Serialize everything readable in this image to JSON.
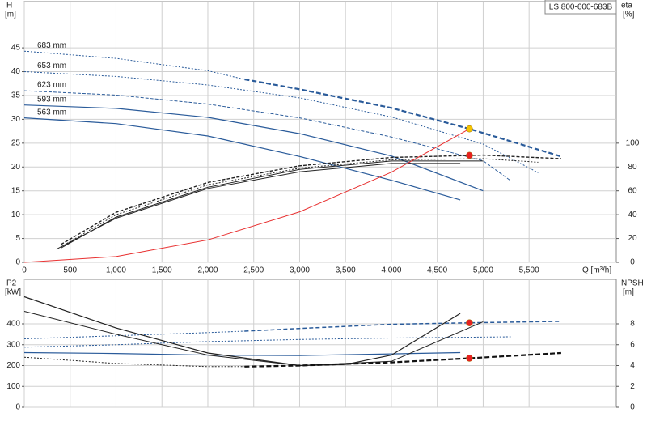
{
  "chart_data": [
    {
      "type": "line",
      "title": "LS 800-600-683B",
      "ylabel": "H",
      "yunit": "[m]",
      "y2label": "eta",
      "y2unit": "[%]",
      "xlabel": "Q [m³/h]",
      "xlim": [
        0,
        6450
      ],
      "xticks": [
        0,
        500,
        {
          "value": 1000,
          "label": "1,000"
        },
        {
          "value": 1500,
          "label": "1,500"
        },
        {
          "value": 2000,
          "label": "2,000"
        },
        {
          "value": 2500,
          "label": "2,500"
        },
        {
          "value": 3000,
          "label": "3,000"
        },
        {
          "value": 3500,
          "label": "3,500"
        },
        {
          "value": 4000,
          "label": "4,000"
        },
        {
          "value": 4500,
          "label": "4,500"
        },
        {
          "value": 5000,
          "label": "5,000"
        },
        {
          "value": 5500,
          "label": "5,500"
        }
      ],
      "show_xtick_labels": true,
      "ylim": [
        0,
        54.7
      ],
      "yticks": [
        0,
        5,
        10,
        15,
        20,
        25,
        30,
        35,
        40,
        45
      ],
      "y2lim": [
        0,
        218.8
      ],
      "y2ticks": [
        0,
        20,
        40,
        60,
        80,
        100
      ],
      "grid": true,
      "series": [
        {
          "name": "683 mm",
          "color": "#2a5b9a",
          "dash": "2,2",
          "width": 1,
          "x": [
            0,
            1000,
            2000,
            2400
          ],
          "values": [
            44.3,
            42.8,
            40.2,
            38.4
          ]
        },
        {
          "color": "#2a5b9a",
          "dash": "6,3",
          "width": 2.2,
          "x": [
            2400,
            3000,
            4000,
            4850,
            5850
          ],
          "values": [
            38.4,
            36.3,
            32.4,
            28.0,
            22.2
          ]
        },
        {
          "name": "653 mm",
          "color": "#2a5b9a",
          "dash": "2,2",
          "width": 1,
          "x": [
            0,
            1000,
            2000,
            3000,
            4000,
            5000,
            5600
          ],
          "values": [
            40.0,
            39.0,
            37.2,
            34.5,
            30.5,
            24.8,
            18.8
          ]
        },
        {
          "name": "623 mm",
          "color": "#2a5b9a",
          "dash": "4,2",
          "width": 1,
          "x": [
            0,
            1000,
            2000,
            3000,
            4000,
            5000,
            5300
          ],
          "values": [
            36.0,
            35.1,
            33.2,
            30.3,
            26.3,
            21.3,
            17.1
          ]
        },
        {
          "name": "593 mm",
          "color": "#2a5b9a",
          "width": 1.2,
          "x": [
            0,
            1000,
            2000,
            3000,
            4000,
            5000
          ],
          "values": [
            33.0,
            32.3,
            30.4,
            27.0,
            22.3,
            15.0
          ]
        },
        {
          "name": "563 mm",
          "color": "#2a5b9a",
          "width": 1.2,
          "x": [
            0,
            1000,
            2000,
            3000,
            4000,
            4750
          ],
          "values": [
            30.3,
            29.1,
            26.5,
            22.2,
            17.2,
            13.1
          ]
        },
        {
          "color": "#222222",
          "dash": "4,2",
          "width": 1.4,
          "axis": "y2",
          "x": [
            400,
            1000,
            2000,
            3000,
            4000,
            5000,
            5850
          ],
          "values": [
            15,
            42,
            67,
            81,
            88,
            90,
            87
          ]
        },
        {
          "color": "#222222",
          "dash": "2,2",
          "width": 1,
          "axis": "y2",
          "x": [
            400,
            1000,
            2000,
            3000,
            4000,
            5000,
            5600
          ],
          "values": [
            13,
            40,
            65,
            79,
            86,
            87,
            84
          ]
        },
        {
          "color": "#222222",
          "width": 1,
          "axis": "y2",
          "x": [
            400,
            1000,
            2000,
            3000,
            4000,
            5000
          ],
          "values": [
            12,
            38,
            63,
            78,
            85,
            85
          ]
        },
        {
          "color": "#222222",
          "width": 1,
          "axis": "y2",
          "x": [
            350,
            1000,
            2000,
            3000,
            4000,
            4750
          ],
          "values": [
            11,
            37,
            62,
            76,
            83,
            83
          ]
        },
        {
          "color": "#e83030",
          "width": 1,
          "x": [
            0,
            1000,
            2000,
            3000,
            4000,
            4850
          ],
          "values": [
            0,
            1.2,
            4.7,
            10.6,
            18.9,
            28.0
          ]
        }
      ],
      "markers": [
        {
          "x": 4850,
          "y": 28.0,
          "color": "#f5c400"
        },
        {
          "x": 4850,
          "y": 89.8,
          "axis": "y2",
          "color": "#e82020"
        }
      ]
    },
    {
      "type": "line",
      "ylabel": "P2",
      "yunit": "[kW]",
      "y2label": "NPSH",
      "y2unit": "[m]",
      "xlim": [
        0,
        6450
      ],
      "xticks": [
        0,
        500,
        1000,
        1500,
        2000,
        2500,
        3000,
        3500,
        4000,
        4500,
        5000,
        5500
      ],
      "show_xtick_labels": false,
      "ylim": [
        0,
        613.6
      ],
      "yticks": [
        0,
        100,
        200,
        300,
        400
      ],
      "y2lim": [
        0,
        12.27
      ],
      "y2ticks": [
        0,
        2,
        4,
        6,
        8
      ],
      "grid": true,
      "series": [
        {
          "color": "#2a5b9a",
          "dash": "2,2",
          "width": 1,
          "x": [
            0,
            1000,
            2000,
            2400
          ],
          "values": [
            328,
            343,
            358,
            365
          ]
        },
        {
          "color": "#2a5b9a",
          "dash": "5,3",
          "width": 1.5,
          "x": [
            2400,
            3000,
            4000,
            4850,
            5850
          ],
          "values": [
            365,
            378,
            398,
            405,
            412
          ]
        },
        {
          "color": "#2a5b9a",
          "dash": "2,2",
          "width": 1,
          "x": [
            0,
            1000,
            2000,
            3000,
            4000,
            5300
          ],
          "values": [
            288,
            300,
            315,
            325,
            332,
            338
          ]
        },
        {
          "color": "#2a5b9a",
          "width": 1.2,
          "x": [
            0,
            1000,
            2000,
            3000,
            4000,
            4750
          ],
          "values": [
            262,
            258,
            250,
            248,
            256,
            262
          ]
        },
        {
          "color": "#222222",
          "width": 1.2,
          "axis": "y2",
          "x": [
            0,
            1000,
            2000,
            3000,
            3500,
            4000,
            4750
          ],
          "values": [
            10.6,
            7.6,
            5.2,
            4.0,
            4.1,
            5.0,
            9.0
          ]
        },
        {
          "color": "#222222",
          "width": 1,
          "axis": "y2",
          "x": [
            0,
            1000,
            2000,
            3000,
            4000,
            5000
          ],
          "values": [
            9.2,
            7.0,
            5.0,
            4.0,
            4.4,
            8.2
          ]
        },
        {
          "color": "#222222",
          "dash": "2,2",
          "width": 1,
          "axis": "y2",
          "x": [
            0,
            1000,
            2000,
            2400
          ],
          "values": [
            4.8,
            4.2,
            3.9,
            3.9
          ]
        },
        {
          "color": "#111111",
          "dash": "6,3",
          "width": 2.2,
          "axis": "y2",
          "x": [
            2400,
            3000,
            4000,
            4850,
            5850
          ],
          "values": [
            3.9,
            4.0,
            4.3,
            4.7,
            5.2
          ]
        }
      ],
      "markers": [
        {
          "x": 4850,
          "y": 405,
          "color": "#e82020"
        },
        {
          "x": 4850,
          "y": 4.7,
          "axis": "y2",
          "color": "#e82020"
        }
      ]
    }
  ]
}
